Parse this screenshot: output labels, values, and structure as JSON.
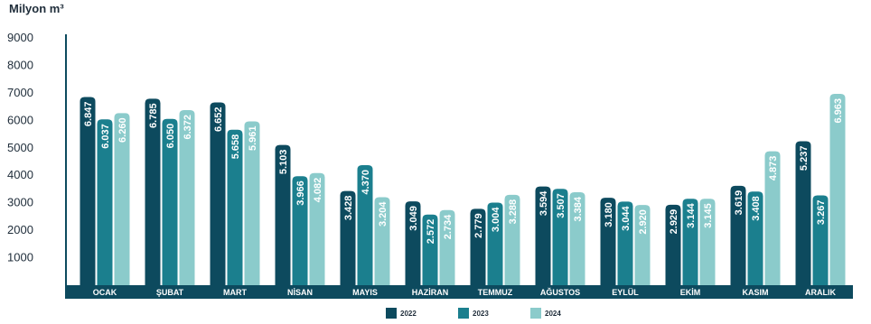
{
  "chart_data": {
    "type": "bar",
    "unit_label": "Milyon m³",
    "ylim": [
      0,
      9000
    ],
    "yticks": [
      "9000",
      "8000",
      "7000",
      "6000",
      "5000",
      "4000",
      "3000",
      "2000",
      "1000"
    ],
    "categories": [
      "OCAK",
      "ŞUBAT",
      "MART",
      "NİSAN",
      "MAYIS",
      "HAZİRAN",
      "TEMMUZ",
      "AĞUSTOS",
      "EYLÜL",
      "EKİM",
      "KASIM",
      "ARALIK"
    ],
    "series": [
      {
        "name": "2022",
        "color": "#0d4a5e",
        "values": [
          6847,
          6785,
          6652,
          5103,
          3428,
          3049,
          2779,
          3594,
          3180,
          2929,
          3619,
          5237
        ],
        "labels": [
          "6.847",
          "6.785",
          "6.652",
          "5.103",
          "3.428",
          "3.049",
          "2.779",
          "3.594",
          "3.180",
          "2.929",
          "3.619",
          "5.237"
        ]
      },
      {
        "name": "2023",
        "color": "#1b7f8e",
        "values": [
          6037,
          6050,
          5658,
          3966,
          4370,
          2572,
          3004,
          3507,
          3044,
          3144,
          3408,
          3267
        ],
        "labels": [
          "6.037",
          "6.050",
          "5.658",
          "3.966",
          "4.370",
          "2.572",
          "3.004",
          "3.507",
          "3.044",
          "3.144",
          "3.408",
          "3.267"
        ]
      },
      {
        "name": "2024",
        "color": "#8bcbcb",
        "values": [
          6260,
          6372,
          5961,
          4082,
          3204,
          2734,
          3288,
          3384,
          2920,
          3145,
          4873,
          6963
        ],
        "labels": [
          "6.260",
          "6.372",
          "5.961",
          "4.082",
          "3.204",
          "2.734",
          "3.288",
          "3.384",
          "2.920",
          "3.145",
          "4.873",
          "6.963"
        ]
      }
    ],
    "category_band_color": "#0d4a5e",
    "axis_color": "#0d4a5e",
    "grid": false,
    "legend_position": "bottom-center"
  }
}
